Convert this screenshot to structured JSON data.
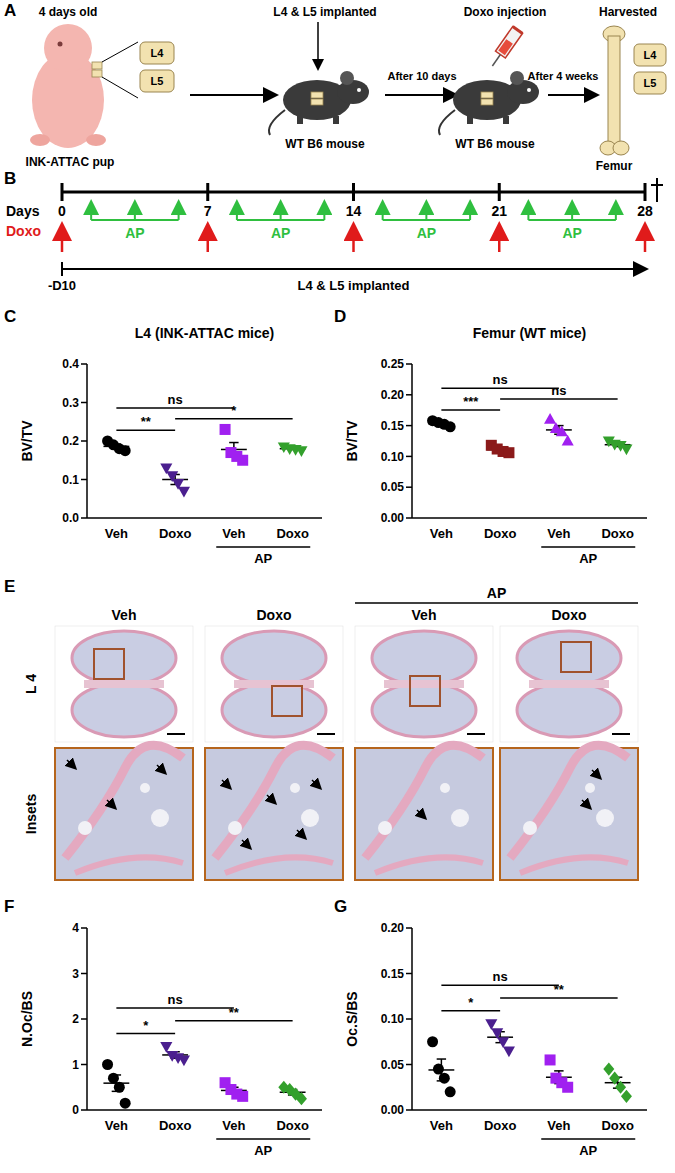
{
  "panel_a": {
    "letter": "A",
    "texts": {
      "age": "4 days old",
      "pup": "INK-ATTAC pup",
      "vertebra_top": "L4",
      "vertebra_bottom": "L5",
      "implanted": "L4 & L5 implanted",
      "mouse1": "WT B6 mouse",
      "wait": "After 10 days",
      "injection": "Doxo injection",
      "mouse2": "WT B6 mouse",
      "after": "After 4 weeks",
      "harvested": "Harvested",
      "harvest_top": "L4",
      "harvest_bottom": "L5",
      "femur": "Femur"
    }
  },
  "panel_b": {
    "letter": "B",
    "axis_label": "Days",
    "days": [
      0,
      7,
      14,
      21,
      28
    ],
    "doxo_label": "Doxo",
    "treatment_label": "AP",
    "implant_label": "L4 & L5 implanted",
    "implant_start": "-D10"
  },
  "chart_data": [
    {
      "type": "scatter",
      "panel": "C",
      "title": "L4 (INK-ATTAC mice)",
      "y_label": "BV/TV",
      "categories": [
        "Veh",
        "Doxo",
        "Veh",
        "Doxo"
      ],
      "group_labels": [
        {
          "from": 2,
          "to": 3,
          "label": "AP"
        }
      ],
      "ylim": [
        0,
        0.4
      ],
      "yticks": [
        {
          "value": 0,
          "label": "0.0"
        },
        0.1,
        0.2,
        0.3,
        0.4
      ],
      "series": [
        {
          "color": "#000000",
          "marker": "circle",
          "values": [
            0.2,
            0.19,
            0.18,
            0.175
          ],
          "mean": 0.186,
          "sem": 0.006
        },
        {
          "color": "#4b1f8f",
          "marker": "triangle-down",
          "values": [
            0.13,
            0.11,
            0.09,
            0.07
          ],
          "mean": 0.1,
          "sem": 0.013
        },
        {
          "color": "#a020f0",
          "marker": "square",
          "values": [
            0.23,
            0.17,
            0.16,
            0.15
          ],
          "mean": 0.178,
          "sem": 0.018
        },
        {
          "color": "#33a02c",
          "marker": "triangle-down",
          "values": [
            0.185,
            0.18,
            0.178,
            0.175
          ],
          "mean": 0.18,
          "sem": 0.002
        }
      ],
      "annotations": [
        {
          "from": 0,
          "to": 1,
          "label": "**"
        },
        {
          "from": 1,
          "to": 3,
          "label": "*"
        },
        {
          "from": 0,
          "to": 2,
          "label": "ns"
        }
      ]
    },
    {
      "type": "scatter",
      "panel": "D",
      "title": "Femur (WT mice)",
      "y_label": "BV/TV",
      "categories": [
        "Veh",
        "Doxo",
        "Veh",
        "Doxo"
      ],
      "group_labels": [
        {
          "from": 2,
          "to": 3,
          "label": "AP"
        }
      ],
      "ylim": [
        0,
        0.25
      ],
      "yticks": [
        {
          "value": 0,
          "label": "0.00"
        },
        0.05,
        {
          "value": 0.1,
          "label": "0.10"
        },
        0.15,
        {
          "value": 0.2,
          "label": "0.20"
        },
        0.25
      ],
      "series": [
        {
          "color": "#000000",
          "marker": "circle",
          "values": [
            0.158,
            0.155,
            0.152,
            0.148
          ],
          "mean": 0.153,
          "sem": 0.002
        },
        {
          "color": "#8b1a1a",
          "marker": "square",
          "values": [
            0.118,
            0.112,
            0.108,
            0.106
          ],
          "mean": 0.111,
          "sem": 0.003
        },
        {
          "color": "#a020f0",
          "marker": "triangle-up",
          "values": [
            0.16,
            0.145,
            0.14,
            0.125
          ],
          "mean": 0.143,
          "sem": 0.007
        },
        {
          "color": "#33a02c",
          "marker": "triangle-down",
          "values": [
            0.125,
            0.12,
            0.118,
            0.112
          ],
          "mean": 0.119,
          "sem": 0.003
        }
      ],
      "annotations": [
        {
          "from": 0,
          "to": 1,
          "label": "***"
        },
        {
          "from": 1,
          "to": 3,
          "label": "ns"
        },
        {
          "from": 0,
          "to": 2,
          "label": "ns"
        }
      ]
    },
    {
      "type": "scatter",
      "panel": "F",
      "y_label": "N.Oc/BS",
      "categories": [
        "Veh",
        "Doxo",
        "Veh",
        "Doxo"
      ],
      "group_labels": [
        {
          "from": 2,
          "to": 3,
          "label": "AP"
        }
      ],
      "ylim": [
        0,
        4
      ],
      "yticks": [
        0,
        1,
        2,
        3,
        4
      ],
      "series": [
        {
          "color": "#000000",
          "marker": "circle",
          "values": [
            1.0,
            0.7,
            0.5,
            0.15
          ],
          "mean": 0.59,
          "sem": 0.18
        },
        {
          "color": "#4b1f8f",
          "marker": "triangle-down",
          "values": [
            1.4,
            1.2,
            1.15,
            1.1
          ],
          "mean": 1.21,
          "sem": 0.07
        },
        {
          "color": "#a020f0",
          "marker": "square",
          "values": [
            0.6,
            0.45,
            0.35,
            0.3
          ],
          "mean": 0.43,
          "sem": 0.07
        },
        {
          "color": "#33a02c",
          "marker": "diamond",
          "values": [
            0.5,
            0.45,
            0.35,
            0.25
          ],
          "mean": 0.39,
          "sem": 0.06
        }
      ],
      "annotations": [
        {
          "from": 0,
          "to": 1,
          "label": "*"
        },
        {
          "from": 1,
          "to": 3,
          "label": "**"
        },
        {
          "from": 0,
          "to": 2,
          "label": "ns"
        }
      ]
    },
    {
      "type": "scatter",
      "panel": "G",
      "y_label": "Oc.S/BS",
      "categories": [
        "Veh",
        "Doxo",
        "Veh",
        "Doxo"
      ],
      "group_labels": [
        {
          "from": 2,
          "to": 3,
          "label": "AP"
        }
      ],
      "ylim": [
        0,
        0.2
      ],
      "yticks": [
        {
          "value": 0,
          "label": "0.00"
        },
        0.05,
        {
          "value": 0.1,
          "label": "0.10"
        },
        0.15,
        {
          "value": 0.2,
          "label": "0.20"
        }
      ],
      "series": [
        {
          "color": "#000000",
          "marker": "circle",
          "values": [
            0.075,
            0.045,
            0.035,
            0.02
          ],
          "mean": 0.044,
          "sem": 0.012
        },
        {
          "color": "#4b1f8f",
          "marker": "triangle-down",
          "values": [
            0.095,
            0.085,
            0.075,
            0.065
          ],
          "mean": 0.08,
          "sem": 0.006
        },
        {
          "color": "#a020f0",
          "marker": "square",
          "values": [
            0.055,
            0.035,
            0.03,
            0.025
          ],
          "mean": 0.036,
          "sem": 0.007
        },
        {
          "color": "#33a02c",
          "marker": "diamond",
          "values": [
            0.045,
            0.035,
            0.025,
            0.015
          ],
          "mean": 0.03,
          "sem": 0.006
        }
      ],
      "annotations": [
        {
          "from": 0,
          "to": 1,
          "label": "*"
        },
        {
          "from": 1,
          "to": 3,
          "label": "**"
        },
        {
          "from": 0,
          "to": 2,
          "label": "ns"
        }
      ]
    }
  ],
  "panel_e": {
    "letter": "E",
    "group_label": "AP",
    "columns": [
      "Veh",
      "Doxo",
      "Veh",
      "Doxo"
    ],
    "rows": [
      "L 4",
      "Insets"
    ]
  }
}
